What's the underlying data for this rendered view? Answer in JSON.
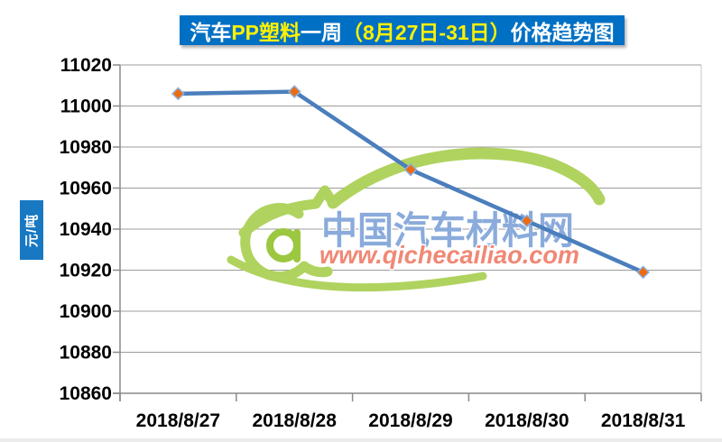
{
  "title": {
    "full_text": "汽车PP塑料一周（8月27日-31日）价格趋势图",
    "segments": [
      {
        "text": "汽车",
        "color": "#FFFFFF"
      },
      {
        "text": "PP塑料",
        "color": "#FFF100"
      },
      {
        "text": "一周",
        "color": "#FFFFFF"
      },
      {
        "text": "（8月27日-31日）",
        "color": "#FFF100"
      },
      {
        "text": "价格趋势图",
        "color": "#FFFFFF"
      }
    ]
  },
  "watermark": {
    "site_name": "中国汽车材料网",
    "site_url": "www.qichecailiao.com"
  },
  "colors": {
    "title_bg": "#0070C4",
    "ylabel_bg": "#1878C2",
    "line": "#4B7EBC",
    "marker": "#EC6B13",
    "marker_border": "#8FB0DC",
    "grid": "#9C9C9C",
    "axis": "#8A8A8A",
    "plot_border": "#C6C6C6",
    "watermark_green": "#AFD35E",
    "watermark_green_dark": "#9CC740",
    "watermark_blue": "#8AABDB",
    "watermark_red": "#F08875"
  },
  "chart_data": {
    "type": "line",
    "title": "汽车PP塑料一周（8月27日-31日）价格趋势图",
    "categories": [
      "2018/8/27",
      "2018/8/28",
      "2018/8/29",
      "2018/8/30",
      "2018/8/31"
    ],
    "values": [
      11006,
      11007,
      10969,
      10944,
      10919
    ],
    "xlabel": "",
    "ylabel": "元/吨",
    "ylim": [
      10860,
      11020
    ],
    "ytick_step": 20,
    "grid": true,
    "legend": false,
    "marker": "diamond"
  }
}
